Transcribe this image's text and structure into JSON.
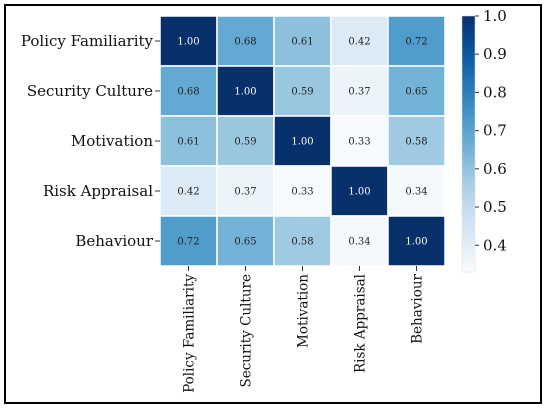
{
  "chart_data": {
    "type": "heatmap",
    "title": "",
    "xlabel": "",
    "ylabel": "",
    "row_labels": [
      "Policy Familiarity",
      "Security Culture",
      "Motivation",
      "Risk Appraisal",
      "Behaviour"
    ],
    "col_labels": [
      "Policy Familiarity",
      "Security Culture",
      "Motivation",
      "Risk Appraisal",
      "Behaviour"
    ],
    "values": [
      [
        1.0,
        0.68,
        0.61,
        0.42,
        0.72
      ],
      [
        0.68,
        1.0,
        0.59,
        0.37,
        0.65
      ],
      [
        0.61,
        0.59,
        1.0,
        0.33,
        0.58
      ],
      [
        0.42,
        0.37,
        0.33,
        1.0,
        0.34
      ],
      [
        0.72,
        0.65,
        0.58,
        0.34,
        1.0
      ]
    ],
    "value_format": "0.00",
    "colormap": "Blues",
    "colorbar": {
      "range": [
        0.33,
        1.0
      ],
      "ticks": [
        "0.4",
        "0.5",
        "0.6",
        "0.7",
        "0.8",
        "0.9",
        "1.0"
      ]
    },
    "annotations": "cell values shown"
  }
}
